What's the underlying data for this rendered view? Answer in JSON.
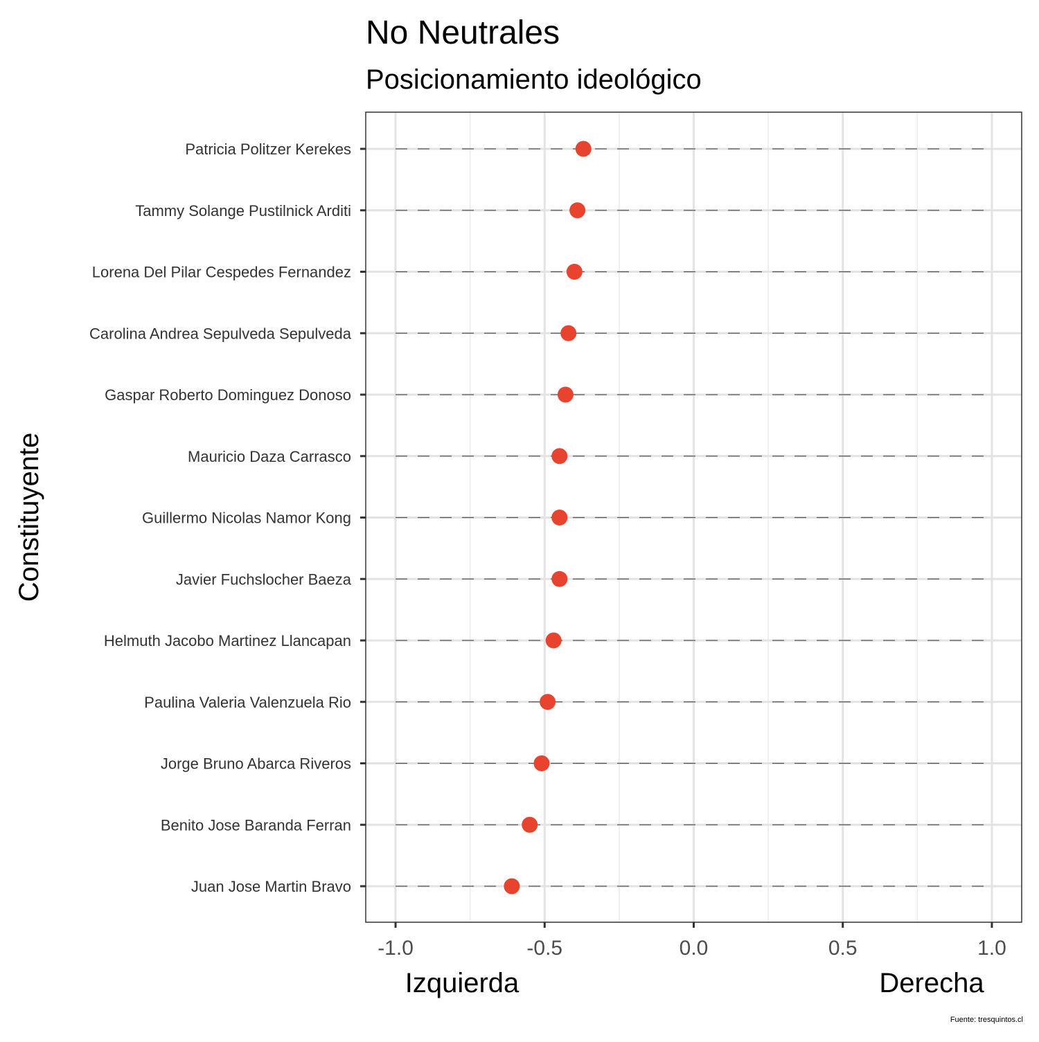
{
  "chart_data": {
    "type": "scatter",
    "title": "No Neutrales",
    "subtitle": "Posicionamiento ideológico",
    "ylabel": "Constituyente",
    "x_left_label": "Izquierda",
    "x_right_label": "Derecha",
    "caption": "Fuente: tresquintos.cl",
    "xlim": [
      -1.1,
      1.1
    ],
    "x_ticks": [
      -1.0,
      -0.5,
      0.0,
      0.5,
      1.0
    ],
    "x_tick_labels": [
      "-1.0",
      "-0.5",
      "0.0",
      "0.5",
      "1.0"
    ],
    "x_minor_ticks": [
      -0.75,
      -0.25,
      0.25,
      0.75
    ],
    "reference_line_range": [
      -1.0,
      1.0
    ],
    "grid": true,
    "point_color": "#E8432E",
    "points": [
      {
        "name": "Patricia Politzer Kerekes",
        "x": -0.37
      },
      {
        "name": "Tammy Solange Pustilnick Arditi",
        "x": -0.39
      },
      {
        "name": "Lorena Del Pilar Cespedes Fernandez",
        "x": -0.4
      },
      {
        "name": "Carolina Andrea Sepulveda Sepulveda",
        "x": -0.42
      },
      {
        "name": "Gaspar Roberto Dominguez Donoso",
        "x": -0.43
      },
      {
        "name": "Mauricio Daza Carrasco",
        "x": -0.45
      },
      {
        "name": "Guillermo Nicolas Namor Kong",
        "x": -0.45
      },
      {
        "name": "Javier Fuchslocher Baeza",
        "x": -0.45
      },
      {
        "name": "Helmuth Jacobo Martinez Llancapan",
        "x": -0.47
      },
      {
        "name": "Paulina Valeria Valenzuela Rio",
        "x": -0.49
      },
      {
        "name": "Jorge Bruno Abarca Riveros",
        "x": -0.51
      },
      {
        "name": "Benito Jose Baranda Ferran",
        "x": -0.55
      },
      {
        "name": "Juan Jose Martin Bravo",
        "x": -0.61
      }
    ]
  }
}
